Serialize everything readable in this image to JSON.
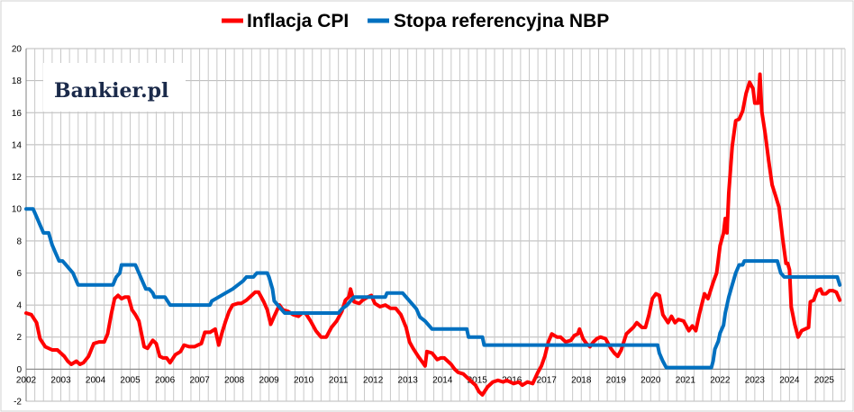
{
  "chart_data": {
    "type": "line",
    "title": "",
    "xlabel": "",
    "ylabel": "",
    "xlim": [
      2002.0,
      2025.6
    ],
    "ylim": [
      -2,
      20
    ],
    "y_ticks": [
      -2,
      0,
      2,
      4,
      6,
      8,
      10,
      12,
      14,
      16,
      18,
      20
    ],
    "x_tick_labels": [
      "2002",
      "2003",
      "2004",
      "2005",
      "2006",
      "2007",
      "2008",
      "2009",
      "2010",
      "2011",
      "2012",
      "2013",
      "2014",
      "2015",
      "2016",
      "2017",
      "2018",
      "2019",
      "2020",
      "2021",
      "2022",
      "2023",
      "2024",
      "2025"
    ],
    "grid": true,
    "legend_position": "top-center",
    "watermark": "Bankier.pl",
    "series": [
      {
        "name": "Inflacja CPI",
        "color": "#ff0000",
        "points": [
          [
            2002.0,
            3.5
          ],
          [
            2002.15,
            3.4
          ],
          [
            2002.3,
            2.9
          ],
          [
            2002.4,
            1.9
          ],
          [
            2002.55,
            1.4
          ],
          [
            2002.75,
            1.2
          ],
          [
            2002.9,
            1.2
          ],
          [
            2003.1,
            0.8
          ],
          [
            2003.2,
            0.5
          ],
          [
            2003.3,
            0.3
          ],
          [
            2003.45,
            0.5
          ],
          [
            2003.55,
            0.3
          ],
          [
            2003.65,
            0.4
          ],
          [
            2003.8,
            0.8
          ],
          [
            2003.95,
            1.6
          ],
          [
            2004.1,
            1.7
          ],
          [
            2004.25,
            1.7
          ],
          [
            2004.35,
            2.2
          ],
          [
            2004.45,
            3.4
          ],
          [
            2004.55,
            4.4
          ],
          [
            2004.65,
            4.6
          ],
          [
            2004.75,
            4.4
          ],
          [
            2004.85,
            4.5
          ],
          [
            2004.95,
            4.5
          ],
          [
            2005.05,
            3.7
          ],
          [
            2005.15,
            3.4
          ],
          [
            2005.25,
            3.0
          ],
          [
            2005.4,
            1.4
          ],
          [
            2005.5,
            1.3
          ],
          [
            2005.65,
            1.8
          ],
          [
            2005.75,
            1.6
          ],
          [
            2005.85,
            0.8
          ],
          [
            2005.95,
            0.7
          ],
          [
            2006.05,
            0.7
          ],
          [
            2006.15,
            0.4
          ],
          [
            2006.3,
            0.9
          ],
          [
            2006.45,
            1.1
          ],
          [
            2006.55,
            1.5
          ],
          [
            2006.7,
            1.4
          ],
          [
            2006.85,
            1.4
          ],
          [
            2006.95,
            1.5
          ],
          [
            2007.05,
            1.6
          ],
          [
            2007.15,
            2.3
          ],
          [
            2007.3,
            2.3
          ],
          [
            2007.45,
            2.5
          ],
          [
            2007.55,
            1.5
          ],
          [
            2007.65,
            2.3
          ],
          [
            2007.75,
            3.0
          ],
          [
            2007.85,
            3.6
          ],
          [
            2007.95,
            4.0
          ],
          [
            2008.1,
            4.1
          ],
          [
            2008.2,
            4.1
          ],
          [
            2008.35,
            4.3
          ],
          [
            2008.5,
            4.6
          ],
          [
            2008.6,
            4.8
          ],
          [
            2008.7,
            4.8
          ],
          [
            2008.85,
            4.2
          ],
          [
            2008.95,
            3.7
          ],
          [
            2009.05,
            2.8
          ],
          [
            2009.15,
            3.3
          ],
          [
            2009.3,
            4.0
          ],
          [
            2009.4,
            3.7
          ],
          [
            2009.55,
            3.6
          ],
          [
            2009.7,
            3.4
          ],
          [
            2009.85,
            3.3
          ],
          [
            2009.95,
            3.5
          ],
          [
            2010.05,
            3.5
          ],
          [
            2010.2,
            3.0
          ],
          [
            2010.35,
            2.4
          ],
          [
            2010.5,
            2.0
          ],
          [
            2010.65,
            2.0
          ],
          [
            2010.8,
            2.6
          ],
          [
            2010.95,
            3.0
          ],
          [
            2011.1,
            3.6
          ],
          [
            2011.2,
            4.3
          ],
          [
            2011.3,
            4.5
          ],
          [
            2011.35,
            5.0
          ],
          [
            2011.45,
            4.2
          ],
          [
            2011.6,
            4.1
          ],
          [
            2011.7,
            4.3
          ],
          [
            2011.85,
            4.5
          ],
          [
            2011.95,
            4.6
          ],
          [
            2012.05,
            4.1
          ],
          [
            2012.2,
            3.9
          ],
          [
            2012.35,
            4.0
          ],
          [
            2012.5,
            3.8
          ],
          [
            2012.65,
            3.8
          ],
          [
            2012.8,
            3.4
          ],
          [
            2012.95,
            2.6
          ],
          [
            2013.05,
            1.7
          ],
          [
            2013.15,
            1.3
          ],
          [
            2013.3,
            0.8
          ],
          [
            2013.4,
            0.5
          ],
          [
            2013.5,
            0.2
          ],
          [
            2013.55,
            1.1
          ],
          [
            2013.7,
            1.0
          ],
          [
            2013.85,
            0.6
          ],
          [
            2013.95,
            0.7
          ],
          [
            2014.05,
            0.7
          ],
          [
            2014.25,
            0.3
          ],
          [
            2014.35,
            0.0
          ],
          [
            2014.45,
            -0.2
          ],
          [
            2014.6,
            -0.3
          ],
          [
            2014.75,
            -0.6
          ],
          [
            2014.85,
            -0.8
          ],
          [
            2014.95,
            -1.0
          ],
          [
            2015.05,
            -1.4
          ],
          [
            2015.15,
            -1.6
          ],
          [
            2015.3,
            -1.1
          ],
          [
            2015.45,
            -0.8
          ],
          [
            2015.6,
            -0.7
          ],
          [
            2015.75,
            -0.8
          ],
          [
            2015.85,
            -0.7
          ],
          [
            2015.95,
            -0.8
          ],
          [
            2016.05,
            -0.9
          ],
          [
            2016.2,
            -0.8
          ],
          [
            2016.3,
            -1.0
          ],
          [
            2016.45,
            -0.8
          ],
          [
            2016.6,
            -0.9
          ],
          [
            2016.75,
            -0.2
          ],
          [
            2016.85,
            0.2
          ],
          [
            2016.95,
            0.8
          ],
          [
            2017.05,
            1.7
          ],
          [
            2017.15,
            2.2
          ],
          [
            2017.3,
            2.0
          ],
          [
            2017.4,
            2.0
          ],
          [
            2017.55,
            1.7
          ],
          [
            2017.7,
            1.8
          ],
          [
            2017.8,
            2.1
          ],
          [
            2017.9,
            2.2
          ],
          [
            2017.95,
            2.5
          ],
          [
            2018.05,
            1.9
          ],
          [
            2018.15,
            1.6
          ],
          [
            2018.25,
            1.4
          ],
          [
            2018.35,
            1.7
          ],
          [
            2018.45,
            1.9
          ],
          [
            2018.55,
            2.0
          ],
          [
            2018.7,
            1.9
          ],
          [
            2018.85,
            1.3
          ],
          [
            2018.95,
            1.0
          ],
          [
            2019.05,
            0.8
          ],
          [
            2019.15,
            1.2
          ],
          [
            2019.3,
            2.2
          ],
          [
            2019.5,
            2.6
          ],
          [
            2019.6,
            2.9
          ],
          [
            2019.75,
            2.6
          ],
          [
            2019.85,
            2.6
          ],
          [
            2019.95,
            3.4
          ],
          [
            2020.05,
            4.4
          ],
          [
            2020.15,
            4.7
          ],
          [
            2020.25,
            4.6
          ],
          [
            2020.35,
            3.4
          ],
          [
            2020.5,
            2.9
          ],
          [
            2020.6,
            3.3
          ],
          [
            2020.7,
            2.9
          ],
          [
            2020.8,
            3.1
          ],
          [
            2020.95,
            3.0
          ],
          [
            2021.05,
            2.6
          ],
          [
            2021.1,
            2.4
          ],
          [
            2021.2,
            2.7
          ],
          [
            2021.3,
            2.4
          ],
          [
            2021.4,
            3.4
          ],
          [
            2021.55,
            4.7
          ],
          [
            2021.65,
            4.4
          ],
          [
            2021.8,
            5.4
          ],
          [
            2021.9,
            6.0
          ],
          [
            2022.0,
            7.7
          ],
          [
            2022.1,
            8.5
          ],
          [
            2022.15,
            9.4
          ],
          [
            2022.2,
            8.5
          ],
          [
            2022.25,
            11.0
          ],
          [
            2022.35,
            13.9
          ],
          [
            2022.45,
            15.5
          ],
          [
            2022.55,
            15.6
          ],
          [
            2022.65,
            16.1
          ],
          [
            2022.75,
            17.2
          ],
          [
            2022.85,
            17.9
          ],
          [
            2022.95,
            17.5
          ],
          [
            2023.0,
            16.6
          ],
          [
            2023.1,
            16.6
          ],
          [
            2023.15,
            18.4
          ],
          [
            2023.2,
            16.1
          ],
          [
            2023.3,
            14.7
          ],
          [
            2023.4,
            13.0
          ],
          [
            2023.5,
            11.5
          ],
          [
            2023.6,
            10.8
          ],
          [
            2023.7,
            10.1
          ],
          [
            2023.8,
            8.2
          ],
          [
            2023.9,
            6.6
          ],
          [
            2023.95,
            6.6
          ],
          [
            2024.0,
            6.2
          ],
          [
            2024.05,
            3.9
          ],
          [
            2024.15,
            2.8
          ],
          [
            2024.25,
            2.0
          ],
          [
            2024.35,
            2.4
          ],
          [
            2024.45,
            2.5
          ],
          [
            2024.55,
            2.6
          ],
          [
            2024.6,
            4.2
          ],
          [
            2024.7,
            4.3
          ],
          [
            2024.8,
            4.9
          ],
          [
            2024.9,
            5.0
          ],
          [
            2024.95,
            4.7
          ],
          [
            2025.05,
            4.7
          ],
          [
            2025.15,
            4.9
          ],
          [
            2025.25,
            4.9
          ],
          [
            2025.35,
            4.8
          ],
          [
            2025.45,
            4.3
          ]
        ]
      },
      {
        "name": "Stopa referencyjna NBP",
        "color": "#0070c0",
        "points": [
          [
            2002.0,
            10.0
          ],
          [
            2002.2,
            10.0
          ],
          [
            2002.3,
            9.5
          ],
          [
            2002.4,
            9.0
          ],
          [
            2002.5,
            8.5
          ],
          [
            2002.65,
            8.5
          ],
          [
            2002.75,
            7.75
          ],
          [
            2002.85,
            7.25
          ],
          [
            2002.95,
            6.75
          ],
          [
            2003.05,
            6.75
          ],
          [
            2003.15,
            6.5
          ],
          [
            2003.25,
            6.25
          ],
          [
            2003.35,
            6.0
          ],
          [
            2003.45,
            5.5
          ],
          [
            2003.5,
            5.25
          ],
          [
            2004.5,
            5.25
          ],
          [
            2004.6,
            5.75
          ],
          [
            2004.7,
            6.0
          ],
          [
            2004.75,
            6.5
          ],
          [
            2005.15,
            6.5
          ],
          [
            2005.25,
            6.0
          ],
          [
            2005.35,
            5.5
          ],
          [
            2005.45,
            5.0
          ],
          [
            2005.55,
            5.0
          ],
          [
            2005.65,
            4.75
          ],
          [
            2005.7,
            4.5
          ],
          [
            2006.0,
            4.5
          ],
          [
            2006.15,
            4.0
          ],
          [
            2007.3,
            4.0
          ],
          [
            2007.35,
            4.25
          ],
          [
            2007.55,
            4.5
          ],
          [
            2007.75,
            4.75
          ],
          [
            2007.95,
            5.0
          ],
          [
            2008.1,
            5.25
          ],
          [
            2008.25,
            5.5
          ],
          [
            2008.35,
            5.75
          ],
          [
            2008.55,
            5.75
          ],
          [
            2008.65,
            6.0
          ],
          [
            2008.95,
            6.0
          ],
          [
            2009.0,
            5.75
          ],
          [
            2009.1,
            5.0
          ],
          [
            2009.15,
            4.25
          ],
          [
            2009.25,
            4.0
          ],
          [
            2009.35,
            3.75
          ],
          [
            2009.45,
            3.5
          ],
          [
            2010.0,
            3.5
          ],
          [
            2011.0,
            3.5
          ],
          [
            2011.1,
            3.75
          ],
          [
            2011.25,
            4.0
          ],
          [
            2011.35,
            4.25
          ],
          [
            2011.45,
            4.5
          ],
          [
            2012.35,
            4.5
          ],
          [
            2012.4,
            4.75
          ],
          [
            2012.85,
            4.75
          ],
          [
            2012.95,
            4.5
          ],
          [
            2013.05,
            4.25
          ],
          [
            2013.15,
            4.0
          ],
          [
            2013.25,
            3.75
          ],
          [
            2013.35,
            3.25
          ],
          [
            2013.5,
            3.0
          ],
          [
            2013.6,
            2.75
          ],
          [
            2013.7,
            2.5
          ],
          [
            2014.7,
            2.5
          ],
          [
            2014.75,
            2.0
          ],
          [
            2015.15,
            2.0
          ],
          [
            2015.2,
            1.5
          ],
          [
            2020.2,
            1.5
          ],
          [
            2020.25,
            1.0
          ],
          [
            2020.35,
            0.5
          ],
          [
            2020.45,
            0.1
          ],
          [
            2021.75,
            0.1
          ],
          [
            2021.8,
            0.5
          ],
          [
            2021.85,
            1.25
          ],
          [
            2021.95,
            1.75
          ],
          [
            2022.0,
            2.25
          ],
          [
            2022.1,
            2.75
          ],
          [
            2022.15,
            3.5
          ],
          [
            2022.25,
            4.5
          ],
          [
            2022.35,
            5.25
          ],
          [
            2022.45,
            6.0
          ],
          [
            2022.55,
            6.5
          ],
          [
            2022.65,
            6.5
          ],
          [
            2022.7,
            6.75
          ],
          [
            2023.65,
            6.75
          ],
          [
            2023.75,
            6.0
          ],
          [
            2023.85,
            5.75
          ],
          [
            2025.3,
            5.75
          ],
          [
            2025.38,
            5.75
          ],
          [
            2025.45,
            5.25
          ]
        ]
      }
    ]
  }
}
